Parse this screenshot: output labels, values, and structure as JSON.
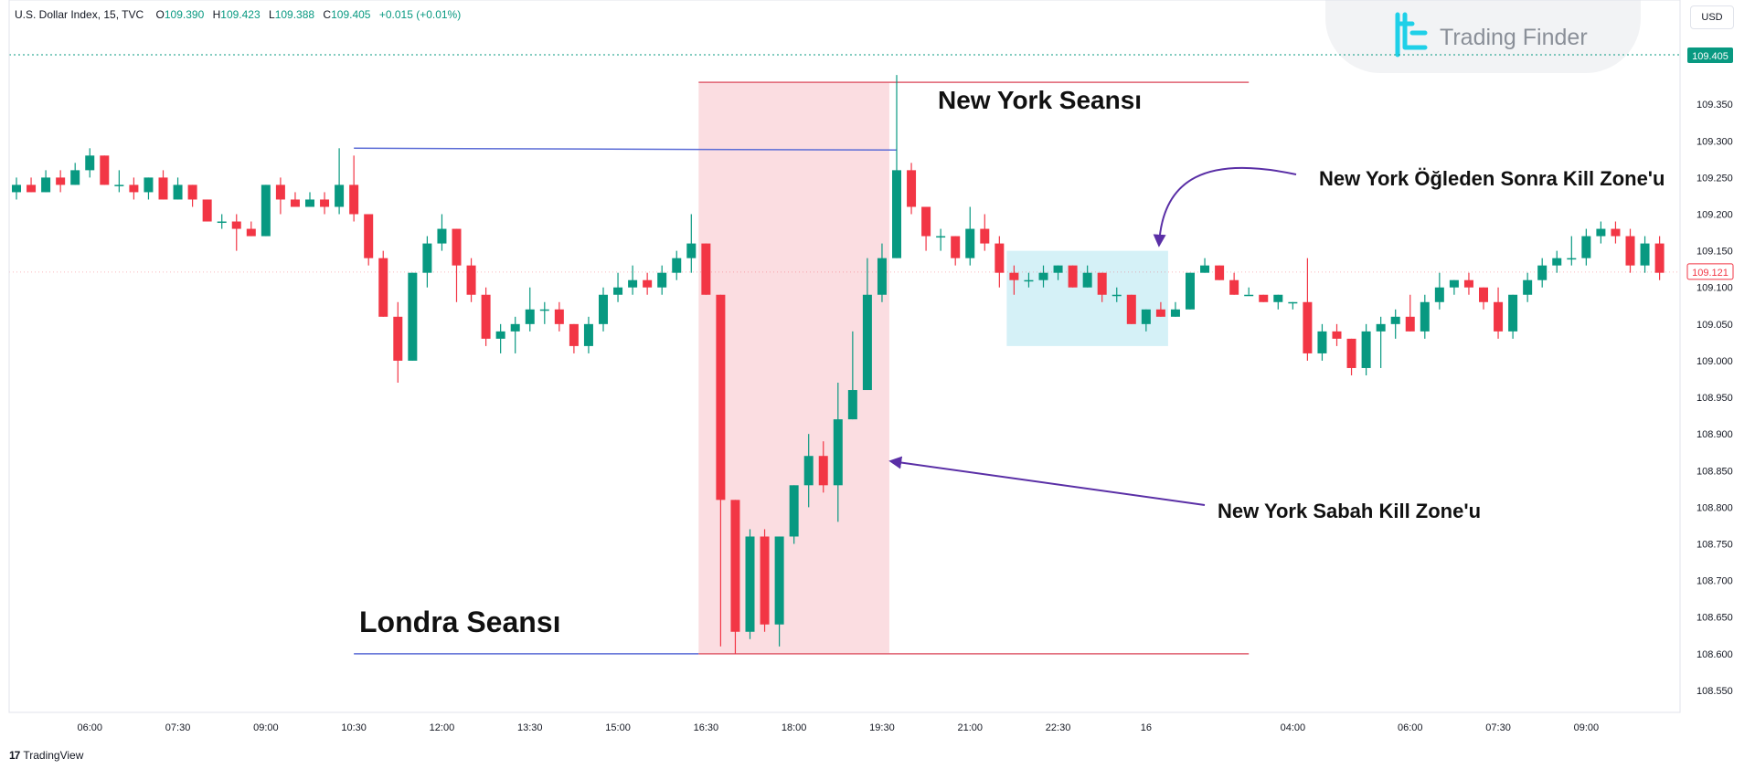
{
  "legend": {
    "title": "U.S. Dollar Index, 15, TVC",
    "o_key": "O",
    "o_val": "109.390",
    "h_key": "H",
    "h_val": "109.423",
    "l_key": "L",
    "l_val": "109.388",
    "c_key": "C",
    "c_val": "109.405",
    "change": "+0.015 (+0.01%)"
  },
  "currency": "USD",
  "brand": {
    "name": "Trading Finder",
    "icon": "trading-finder-logo",
    "color": "#1fd0e8"
  },
  "footer": {
    "logo_mark": "17",
    "logo_text": "TradingView"
  },
  "annotations": {
    "new_york_session": "New York Seansı",
    "london_session": "Londra Seansı",
    "ny_afternoon_kz": "New York Öğleden Sonra Kill Zone'u",
    "ny_morning_kz": "New York Sabah Kill Zone'u"
  },
  "colors": {
    "up": "#089981",
    "down": "#f23645",
    "session_fill": "#fbdde1",
    "kill_zone_fill": "#d5f1f7",
    "level_blue": "#5b6cd6",
    "level_red": "#e06070",
    "arrow": "#5a2fa6"
  },
  "chart_data": {
    "type": "candlestick",
    "title": "U.S. Dollar Index, 15, TVC",
    "y_ticks": [
      109.35,
      109.3,
      109.25,
      109.2,
      109.15,
      109.1,
      109.05,
      109.0,
      108.95,
      108.9,
      108.85,
      108.8,
      108.75,
      108.7,
      108.65,
      108.6,
      108.55
    ],
    "y_tick_labels": [
      "109.350",
      "109.300",
      "109.250",
      "109.200",
      "109.150",
      "109.100",
      "109.050",
      "109.000",
      "108.950",
      "108.900",
      "108.850",
      "108.800",
      "108.750",
      "108.700",
      "108.650",
      "108.600",
      "108.550"
    ],
    "x_tick_labels": [
      "06:00",
      "07:30",
      "09:00",
      "10:30",
      "12:00",
      "13:30",
      "15:00",
      "16:30",
      "18:00",
      "19:30",
      "21:00",
      "22:30",
      "16",
      "04:00",
      "06:00",
      "07:30",
      "09:00"
    ],
    "x_tick_index": [
      5,
      11,
      17,
      23,
      29,
      35,
      41,
      47,
      53,
      59,
      65,
      71,
      77,
      87,
      95,
      101,
      107
    ],
    "ylim": [
      108.52,
      109.43
    ],
    "last_price": "109.405",
    "current_price": "109.121",
    "candles": [
      {
        "o": 109.23,
        "h": 109.25,
        "l": 109.22,
        "c": 109.24
      },
      {
        "o": 109.24,
        "h": 109.25,
        "l": 109.23,
        "c": 109.23
      },
      {
        "o": 109.23,
        "h": 109.26,
        "l": 109.23,
        "c": 109.25
      },
      {
        "o": 109.25,
        "h": 109.26,
        "l": 109.23,
        "c": 109.24
      },
      {
        "o": 109.24,
        "h": 109.27,
        "l": 109.24,
        "c": 109.26
      },
      {
        "o": 109.26,
        "h": 109.29,
        "l": 109.25,
        "c": 109.28
      },
      {
        "o": 109.28,
        "h": 109.28,
        "l": 109.24,
        "c": 109.24
      },
      {
        "o": 109.24,
        "h": 109.26,
        "l": 109.23,
        "c": 109.24
      },
      {
        "o": 109.24,
        "h": 109.25,
        "l": 109.22,
        "c": 109.23
      },
      {
        "o": 109.23,
        "h": 109.25,
        "l": 109.22,
        "c": 109.25
      },
      {
        "o": 109.25,
        "h": 109.26,
        "l": 109.22,
        "c": 109.22
      },
      {
        "o": 109.22,
        "h": 109.25,
        "l": 109.22,
        "c": 109.24
      },
      {
        "o": 109.24,
        "h": 109.24,
        "l": 109.21,
        "c": 109.22
      },
      {
        "o": 109.22,
        "h": 109.22,
        "l": 109.19,
        "c": 109.19
      },
      {
        "o": 109.19,
        "h": 109.2,
        "l": 109.18,
        "c": 109.19
      },
      {
        "o": 109.19,
        "h": 109.2,
        "l": 109.15,
        "c": 109.18
      },
      {
        "o": 109.18,
        "h": 109.19,
        "l": 109.17,
        "c": 109.17
      },
      {
        "o": 109.17,
        "h": 109.24,
        "l": 109.17,
        "c": 109.24
      },
      {
        "o": 109.24,
        "h": 109.25,
        "l": 109.2,
        "c": 109.22
      },
      {
        "o": 109.22,
        "h": 109.23,
        "l": 109.21,
        "c": 109.21
      },
      {
        "o": 109.21,
        "h": 109.23,
        "l": 109.21,
        "c": 109.22
      },
      {
        "o": 109.22,
        "h": 109.23,
        "l": 109.2,
        "c": 109.21
      },
      {
        "o": 109.21,
        "h": 109.29,
        "l": 109.2,
        "c": 109.24
      },
      {
        "o": 109.24,
        "h": 109.28,
        "l": 109.19,
        "c": 109.2
      },
      {
        "o": 109.2,
        "h": 109.2,
        "l": 109.13,
        "c": 109.14
      },
      {
        "o": 109.14,
        "h": 109.15,
        "l": 109.06,
        "c": 109.06
      },
      {
        "o": 109.06,
        "h": 109.08,
        "l": 108.97,
        "c": 109.0
      },
      {
        "o": 109.0,
        "h": 109.12,
        "l": 109.0,
        "c": 109.12
      },
      {
        "o": 109.12,
        "h": 109.17,
        "l": 109.1,
        "c": 109.16
      },
      {
        "o": 109.16,
        "h": 109.2,
        "l": 109.15,
        "c": 109.18
      },
      {
        "o": 109.18,
        "h": 109.18,
        "l": 109.08,
        "c": 109.13
      },
      {
        "o": 109.13,
        "h": 109.14,
        "l": 109.08,
        "c": 109.09
      },
      {
        "o": 109.09,
        "h": 109.1,
        "l": 109.02,
        "c": 109.03
      },
      {
        "o": 109.03,
        "h": 109.05,
        "l": 109.01,
        "c": 109.04
      },
      {
        "o": 109.04,
        "h": 109.06,
        "l": 109.01,
        "c": 109.05
      },
      {
        "o": 109.05,
        "h": 109.1,
        "l": 109.04,
        "c": 109.07
      },
      {
        "o": 109.07,
        "h": 109.08,
        "l": 109.05,
        "c": 109.07
      },
      {
        "o": 109.07,
        "h": 109.08,
        "l": 109.04,
        "c": 109.05
      },
      {
        "o": 109.05,
        "h": 109.05,
        "l": 109.01,
        "c": 109.02
      },
      {
        "o": 109.02,
        "h": 109.06,
        "l": 109.01,
        "c": 109.05
      },
      {
        "o": 109.05,
        "h": 109.1,
        "l": 109.04,
        "c": 109.09
      },
      {
        "o": 109.09,
        "h": 109.12,
        "l": 109.08,
        "c": 109.1
      },
      {
        "o": 109.1,
        "h": 109.13,
        "l": 109.09,
        "c": 109.11
      },
      {
        "o": 109.11,
        "h": 109.12,
        "l": 109.09,
        "c": 109.1
      },
      {
        "o": 109.1,
        "h": 109.13,
        "l": 109.09,
        "c": 109.12
      },
      {
        "o": 109.12,
        "h": 109.15,
        "l": 109.11,
        "c": 109.14
      },
      {
        "o": 109.14,
        "h": 109.2,
        "l": 109.12,
        "c": 109.16
      },
      {
        "o": 109.16,
        "h": 109.16,
        "l": 109.09,
        "c": 109.09
      },
      {
        "o": 109.09,
        "h": 109.09,
        "l": 108.61,
        "c": 108.81
      },
      {
        "o": 108.81,
        "h": 108.81,
        "l": 108.6,
        "c": 108.63
      },
      {
        "o": 108.63,
        "h": 108.77,
        "l": 108.62,
        "c": 108.76
      },
      {
        "o": 108.76,
        "h": 108.77,
        "l": 108.63,
        "c": 108.64
      },
      {
        "o": 108.64,
        "h": 108.76,
        "l": 108.61,
        "c": 108.76
      },
      {
        "o": 108.76,
        "h": 108.83,
        "l": 108.75,
        "c": 108.83
      },
      {
        "o": 108.83,
        "h": 108.9,
        "l": 108.8,
        "c": 108.87
      },
      {
        "o": 108.87,
        "h": 108.89,
        "l": 108.82,
        "c": 108.83
      },
      {
        "o": 108.83,
        "h": 108.97,
        "l": 108.78,
        "c": 108.92
      },
      {
        "o": 108.92,
        "h": 109.04,
        "l": 108.92,
        "c": 108.96
      },
      {
        "o": 108.96,
        "h": 109.14,
        "l": 108.96,
        "c": 109.09
      },
      {
        "o": 109.09,
        "h": 109.16,
        "l": 109.08,
        "c": 109.14
      },
      {
        "o": 109.14,
        "h": 109.39,
        "l": 109.14,
        "c": 109.26
      },
      {
        "o": 109.26,
        "h": 109.27,
        "l": 109.2,
        "c": 109.21
      },
      {
        "o": 109.21,
        "h": 109.21,
        "l": 109.15,
        "c": 109.17
      },
      {
        "o": 109.17,
        "h": 109.18,
        "l": 109.15,
        "c": 109.17
      },
      {
        "o": 109.17,
        "h": 109.17,
        "l": 109.13,
        "c": 109.14
      },
      {
        "o": 109.14,
        "h": 109.21,
        "l": 109.13,
        "c": 109.18
      },
      {
        "o": 109.18,
        "h": 109.2,
        "l": 109.15,
        "c": 109.16
      },
      {
        "o": 109.16,
        "h": 109.17,
        "l": 109.1,
        "c": 109.12
      },
      {
        "o": 109.12,
        "h": 109.13,
        "l": 109.09,
        "c": 109.11
      },
      {
        "o": 109.11,
        "h": 109.12,
        "l": 109.1,
        "c": 109.11
      },
      {
        "o": 109.11,
        "h": 109.13,
        "l": 109.1,
        "c": 109.12
      },
      {
        "o": 109.12,
        "h": 109.13,
        "l": 109.11,
        "c": 109.13
      },
      {
        "o": 109.13,
        "h": 109.13,
        "l": 109.1,
        "c": 109.1
      },
      {
        "o": 109.1,
        "h": 109.13,
        "l": 109.1,
        "c": 109.12
      },
      {
        "o": 109.12,
        "h": 109.12,
        "l": 109.08,
        "c": 109.09
      },
      {
        "o": 109.09,
        "h": 109.1,
        "l": 109.08,
        "c": 109.09
      },
      {
        "o": 109.09,
        "h": 109.09,
        "l": 109.05,
        "c": 109.05
      },
      {
        "o": 109.05,
        "h": 109.07,
        "l": 109.04,
        "c": 109.07
      },
      {
        "o": 109.07,
        "h": 109.08,
        "l": 109.06,
        "c": 109.06
      },
      {
        "o": 109.06,
        "h": 109.08,
        "l": 109.06,
        "c": 109.07
      },
      {
        "o": 109.07,
        "h": 109.12,
        "l": 109.07,
        "c": 109.12
      },
      {
        "o": 109.12,
        "h": 109.14,
        "l": 109.12,
        "c": 109.13
      },
      {
        "o": 109.13,
        "h": 109.13,
        "l": 109.11,
        "c": 109.11
      },
      {
        "o": 109.11,
        "h": 109.12,
        "l": 109.09,
        "c": 109.09
      },
      {
        "o": 109.09,
        "h": 109.1,
        "l": 109.09,
        "c": 109.09
      },
      {
        "o": 109.09,
        "h": 109.09,
        "l": 109.08,
        "c": 109.08
      },
      {
        "o": 109.08,
        "h": 109.09,
        "l": 109.07,
        "c": 109.09
      },
      {
        "o": 109.08,
        "h": 109.08,
        "l": 109.07,
        "c": 109.08
      },
      {
        "o": 109.08,
        "h": 109.14,
        "l": 109.0,
        "c": 109.01
      },
      {
        "o": 109.01,
        "h": 109.05,
        "l": 109.0,
        "c": 109.04
      },
      {
        "o": 109.04,
        "h": 109.05,
        "l": 109.02,
        "c": 109.03
      },
      {
        "o": 109.03,
        "h": 109.03,
        "l": 108.98,
        "c": 108.99
      },
      {
        "o": 108.99,
        "h": 109.05,
        "l": 108.98,
        "c": 109.04
      },
      {
        "o": 109.04,
        "h": 109.06,
        "l": 108.99,
        "c": 109.05
      },
      {
        "o": 109.05,
        "h": 109.07,
        "l": 109.03,
        "c": 109.06
      },
      {
        "o": 109.06,
        "h": 109.09,
        "l": 109.04,
        "c": 109.04
      },
      {
        "o": 109.04,
        "h": 109.09,
        "l": 109.03,
        "c": 109.08
      },
      {
        "o": 109.08,
        "h": 109.12,
        "l": 109.07,
        "c": 109.1
      },
      {
        "o": 109.1,
        "h": 109.11,
        "l": 109.09,
        "c": 109.11
      },
      {
        "o": 109.11,
        "h": 109.12,
        "l": 109.09,
        "c": 109.1
      },
      {
        "o": 109.1,
        "h": 109.1,
        "l": 109.07,
        "c": 109.08
      },
      {
        "o": 109.08,
        "h": 109.1,
        "l": 109.03,
        "c": 109.04
      },
      {
        "o": 109.04,
        "h": 109.09,
        "l": 109.03,
        "c": 109.09
      },
      {
        "o": 109.09,
        "h": 109.12,
        "l": 109.08,
        "c": 109.11
      },
      {
        "o": 109.11,
        "h": 109.14,
        "l": 109.1,
        "c": 109.13
      },
      {
        "o": 109.13,
        "h": 109.15,
        "l": 109.12,
        "c": 109.14
      },
      {
        "o": 109.14,
        "h": 109.17,
        "l": 109.13,
        "c": 109.14
      },
      {
        "o": 109.14,
        "h": 109.18,
        "l": 109.13,
        "c": 109.17
      },
      {
        "o": 109.17,
        "h": 109.19,
        "l": 109.16,
        "c": 109.18
      },
      {
        "o": 109.18,
        "h": 109.19,
        "l": 109.16,
        "c": 109.17
      },
      {
        "o": 109.17,
        "h": 109.18,
        "l": 109.12,
        "c": 109.13
      },
      {
        "o": 109.13,
        "h": 109.17,
        "l": 109.12,
        "c": 109.16
      },
      {
        "o": 109.16,
        "h": 109.17,
        "l": 109.11,
        "c": 109.12
      }
    ],
    "levels": {
      "london_high": 109.29,
      "london_low": 108.6,
      "ny_high": 109.38,
      "ny_low": 108.6
    },
    "kill_zone": {
      "start_index": 68,
      "end_index": 78,
      "low": 109.02,
      "high": 109.15
    },
    "session_zone": {
      "start_index": 47,
      "end_index": 60
    },
    "grid": false,
    "legend": "top-left"
  }
}
